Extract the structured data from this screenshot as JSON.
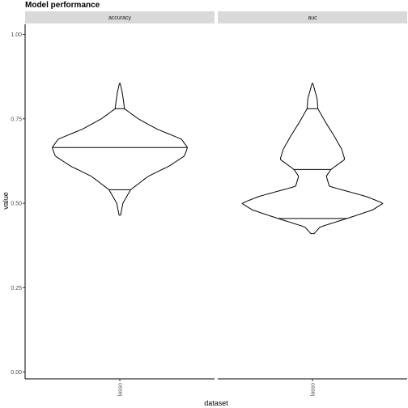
{
  "chart_data": {
    "type": "violin",
    "title": "Model performance",
    "xlabel": "dataset",
    "ylabel": "value",
    "ylim": [
      -0.02,
      1.03
    ],
    "yticks": [
      0.0,
      0.25,
      0.5,
      0.75,
      1.0
    ],
    "ytick_labels": [
      "0.00",
      "0.25",
      "0.50",
      "0.75",
      "1.00"
    ],
    "grid": false,
    "facets": [
      {
        "strip_label": "accuracy",
        "x_category": "lasso",
        "min": 0.465,
        "max": 0.855,
        "quantiles": [
          0.54,
          0.665,
          0.78
        ],
        "density": [
          [
            0.465,
            0.01
          ],
          [
            0.5,
            0.04
          ],
          [
            0.54,
            0.14
          ],
          [
            0.58,
            0.37
          ],
          [
            0.61,
            0.64
          ],
          [
            0.64,
            0.84
          ],
          [
            0.665,
            0.88
          ],
          [
            0.69,
            0.8
          ],
          [
            0.72,
            0.48
          ],
          [
            0.75,
            0.24
          ],
          [
            0.78,
            0.06
          ],
          [
            0.8,
            0.05
          ],
          [
            0.83,
            0.03
          ],
          [
            0.855,
            0.005
          ]
        ]
      },
      {
        "strip_label": "auc",
        "x_category": "lasso",
        "min": 0.41,
        "max": 0.855,
        "quantiles": [
          0.455,
          0.6,
          0.78
        ],
        "density": [
          [
            0.41,
            0.02
          ],
          [
            0.43,
            0.1
          ],
          [
            0.455,
            0.45
          ],
          [
            0.48,
            0.78
          ],
          [
            0.5,
            0.92
          ],
          [
            0.52,
            0.7
          ],
          [
            0.55,
            0.22
          ],
          [
            0.58,
            0.18
          ],
          [
            0.6,
            0.24
          ],
          [
            0.63,
            0.42
          ],
          [
            0.66,
            0.38
          ],
          [
            0.7,
            0.28
          ],
          [
            0.74,
            0.17
          ],
          [
            0.78,
            0.07
          ],
          [
            0.81,
            0.06
          ],
          [
            0.855,
            0.005
          ]
        ]
      }
    ]
  }
}
